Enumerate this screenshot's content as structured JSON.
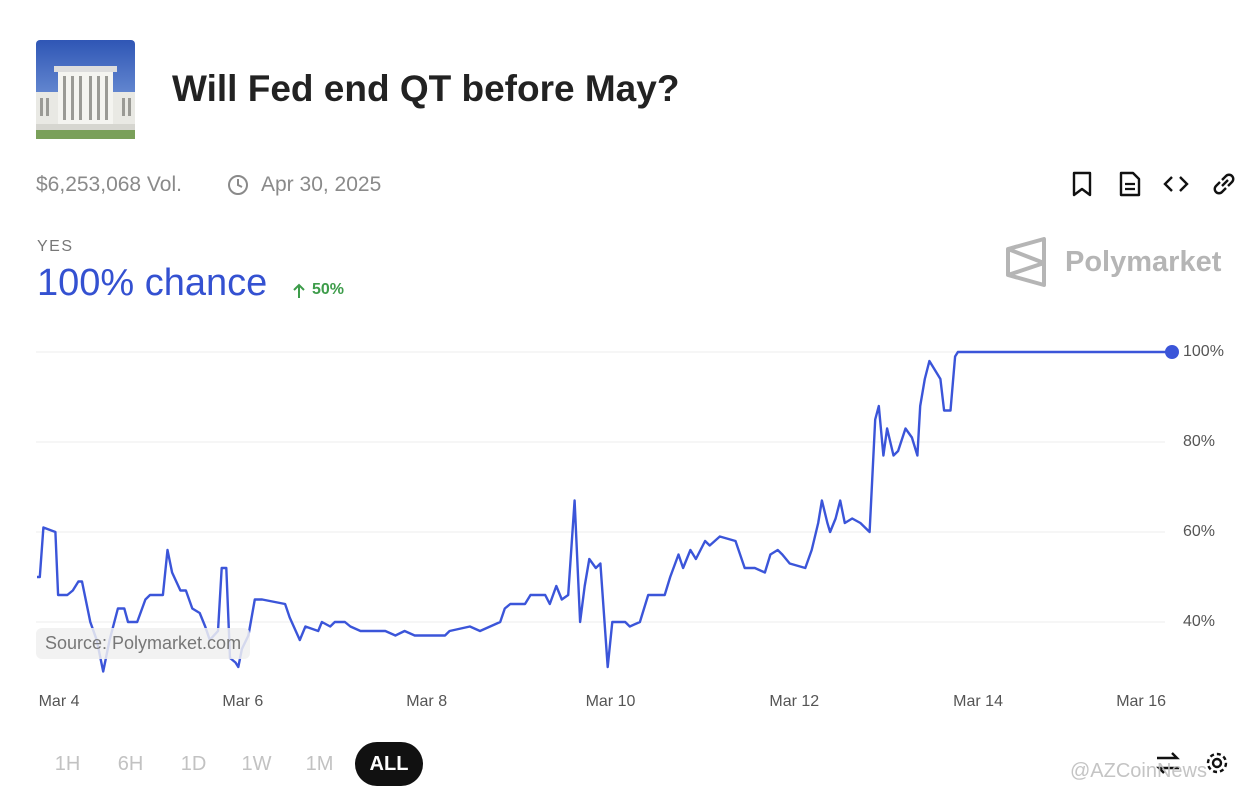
{
  "header": {
    "title": "Will Fed end QT before May?",
    "volume": "$6,253,068 Vol.",
    "end_date": "Apr 30, 2025"
  },
  "outcome": {
    "label": "YES",
    "chance": "100% chance",
    "change": "50%"
  },
  "brand": "Polymarket",
  "source": "Source: Polymarket.com",
  "ranges": [
    "1H",
    "6H",
    "1D",
    "1W",
    "1M",
    "ALL"
  ],
  "selected_range": 5,
  "watermark": "@AZCoinNews",
  "chart_data": {
    "type": "line",
    "color": "#3b55d9",
    "grid": true,
    "xlim": [
      3.76,
      16.11
    ],
    "xticks": [
      {
        "value": 4,
        "label": "Mar 4"
      },
      {
        "value": 6,
        "label": "Mar 6"
      },
      {
        "value": 8,
        "label": "Mar 8"
      },
      {
        "value": 10,
        "label": "Mar 10"
      },
      {
        "value": 12,
        "label": "Mar 12"
      },
      {
        "value": 14,
        "label": "Mar 14"
      },
      {
        "value": 16,
        "label": "Mar 16"
      }
    ],
    "ylim": [
      28,
      102
    ],
    "yticks": [
      {
        "value": 40,
        "label": "40%"
      },
      {
        "value": 60,
        "label": "60%"
      },
      {
        "value": 80,
        "label": "80%"
      },
      {
        "value": 100,
        "label": "100%"
      }
    ],
    "x": [
      3.76,
      3.79,
      3.83,
      3.96,
      3.99,
      4.09,
      4.15,
      4.21,
      4.25,
      4.34,
      4.41,
      4.48,
      4.55,
      4.64,
      4.71,
      4.75,
      4.85,
      4.94,
      4.99,
      5.13,
      5.18,
      5.23,
      5.32,
      5.38,
      5.45,
      5.53,
      5.59,
      5.64,
      5.73,
      5.77,
      5.82,
      5.86,
      5.92,
      5.95,
      5.99,
      6.06,
      6.13,
      6.21,
      6.46,
      6.51,
      6.62,
      6.68,
      6.82,
      6.86,
      6.95,
      7.0,
      7.11,
      7.17,
      7.28,
      7.55,
      7.66,
      7.76,
      7.87,
      7.98,
      8.2,
      8.25,
      8.47,
      8.58,
      8.69,
      8.8,
      8.85,
      8.91,
      9.07,
      9.13,
      9.29,
      9.34,
      9.41,
      9.47,
      9.54,
      9.61,
      9.67,
      9.72,
      9.77,
      9.84,
      9.89,
      9.97,
      10.02,
      10.16,
      10.21,
      10.32,
      10.41,
      10.59,
      10.65,
      10.74,
      10.79,
      10.87,
      10.93,
      11.03,
      11.08,
      11.19,
      11.36,
      11.46,
      11.57,
      11.68,
      11.74,
      11.82,
      11.87,
      11.95,
      12.12,
      12.19,
      12.26,
      12.3,
      12.36,
      12.39,
      12.45,
      12.5,
      12.55,
      12.63,
      12.72,
      12.82,
      12.88,
      12.92,
      12.97,
      13.01,
      13.08,
      13.13,
      13.21,
      13.28,
      13.34,
      13.37,
      13.42,
      13.47,
      13.53,
      13.59,
      13.63,
      13.7,
      13.75,
      13.78,
      14.02,
      14.89,
      14.95,
      15.33,
      16.11
    ],
    "values": [
      50,
      50,
      61,
      60,
      46,
      46,
      47,
      49,
      49,
      40,
      36,
      29,
      36,
      43,
      43,
      40,
      40,
      45,
      46,
      46,
      56,
      51,
      47,
      47,
      43,
      42,
      39,
      36,
      38,
      52,
      52,
      32,
      31,
      30,
      34,
      37,
      45,
      45,
      44,
      41,
      36,
      39,
      38,
      40,
      39,
      40,
      40,
      39,
      38,
      38,
      37,
      38,
      37,
      37,
      37,
      38,
      39,
      38,
      39,
      40,
      43,
      44,
      44,
      46,
      46,
      44,
      48,
      45,
      46,
      67,
      40,
      48,
      54,
      52,
      53,
      30,
      40,
      40,
      39,
      40,
      46,
      46,
      50,
      55,
      52,
      56,
      54,
      58,
      57,
      59,
      58,
      52,
      52,
      51,
      55,
      56,
      55,
      53,
      52,
      56,
      62,
      67,
      62,
      60,
      63,
      67,
      62,
      63,
      62,
      60,
      85,
      88,
      77,
      83,
      77,
      78,
      83,
      81,
      77,
      88,
      94,
      98,
      96,
      94,
      87,
      87,
      99,
      100,
      100,
      100,
      100,
      100,
      100
    ]
  }
}
